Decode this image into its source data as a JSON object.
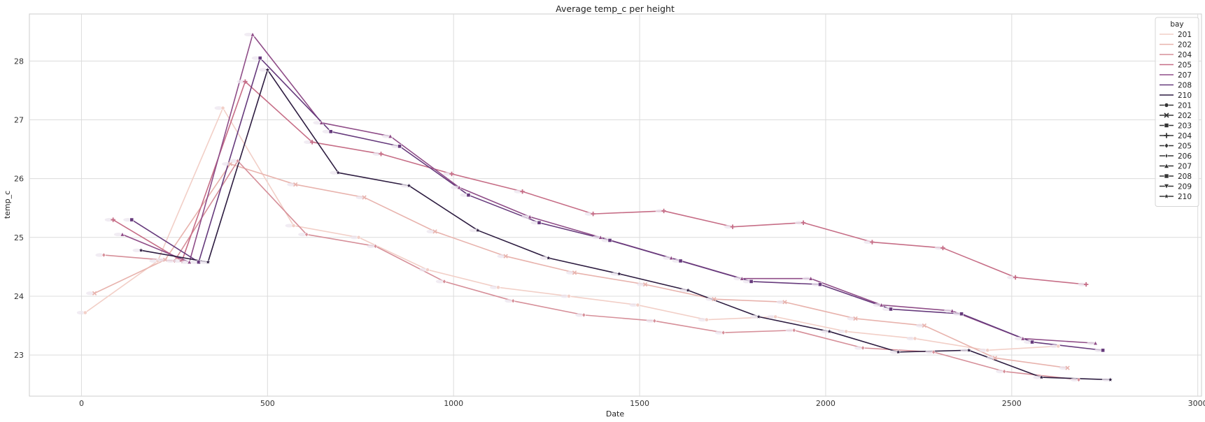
{
  "chart_data": {
    "type": "line",
    "title": "Average temp_c per height",
    "xlabel": "Date",
    "ylabel": "temp_c",
    "xlim": [
      -140,
      3010
    ],
    "ylim": [
      22.3,
      28.8
    ],
    "xticks": [
      0,
      500,
      1000,
      1500,
      2000,
      2500,
      3000
    ],
    "yticks": [
      23,
      24,
      25,
      26,
      27,
      28
    ],
    "grid": true,
    "legend": {
      "title": "bay",
      "placement": "top-right",
      "hue_entries": [
        "201",
        "202",
        "204",
        "205",
        "207",
        "208",
        "210"
      ],
      "style_entries": [
        "201",
        "202",
        "203",
        "204",
        "205",
        "206",
        "207",
        "208",
        "209",
        "210"
      ]
    },
    "series": [
      {
        "name": "201",
        "color": "#f2cfc7",
        "marker": "circle",
        "x": [
          10,
          205,
          380,
          570,
          745,
          930,
          1120,
          1310,
          1495,
          1680,
          1865,
          2055,
          2240,
          2435,
          2625
        ],
        "y": [
          23.72,
          24.6,
          27.2,
          25.2,
          25.0,
          24.45,
          24.15,
          24.0,
          23.85,
          23.6,
          23.65,
          23.4,
          23.28,
          23.08,
          23.15
        ]
      },
      {
        "name": "202",
        "color": "#e8b3ad",
        "marker": "x",
        "x": [
          35,
          225,
          400,
          575,
          760,
          950,
          1140,
          1325,
          1515,
          1700,
          1890,
          2080,
          2265,
          2455,
          2650
        ],
        "y": [
          24.05,
          24.62,
          26.25,
          25.9,
          25.68,
          25.1,
          24.68,
          24.4,
          24.2,
          23.95,
          23.9,
          23.62,
          23.5,
          22.95,
          22.78
        ]
      },
      {
        "name": "204",
        "color": "#d68f99",
        "marker": "diamond",
        "x": [
          60,
          250,
          420,
          605,
          790,
          975,
          1160,
          1350,
          1540,
          1725,
          1915,
          2100,
          2290,
          2480,
          2680
        ],
        "y": [
          24.7,
          24.6,
          26.3,
          25.05,
          24.85,
          24.25,
          23.92,
          23.68,
          23.58,
          23.38,
          23.42,
          23.12,
          23.05,
          22.72,
          22.58
        ]
      },
      {
        "name": "205",
        "color": "#c66d86",
        "marker": "plus",
        "x": [
          85,
          270,
          440,
          620,
          805,
          995,
          1185,
          1375,
          1565,
          1750,
          1940,
          2125,
          2315,
          2510,
          2700
        ],
        "y": [
          25.3,
          24.6,
          27.65,
          26.62,
          26.42,
          26.08,
          25.78,
          25.4,
          25.45,
          25.18,
          25.25,
          24.92,
          24.82,
          24.32,
          24.2
        ]
      },
      {
        "name": "207",
        "color": "#8f4d88",
        "marker": "triangle",
        "x": [
          110,
          290,
          460,
          645,
          830,
          1015,
          1205,
          1395,
          1585,
          1775,
          1960,
          2150,
          2340,
          2530,
          2725
        ],
        "y": [
          25.05,
          24.58,
          28.45,
          26.95,
          26.72,
          25.85,
          25.35,
          25.0,
          24.65,
          24.3,
          24.3,
          23.85,
          23.75,
          23.28,
          23.2
        ]
      },
      {
        "name": "208",
        "color": "#663a7c",
        "marker": "square",
        "x": [
          135,
          315,
          480,
          670,
          855,
          1040,
          1230,
          1420,
          1610,
          1800,
          1985,
          2175,
          2365,
          2555,
          2745
        ],
        "y": [
          25.3,
          24.58,
          28.05,
          26.8,
          26.55,
          25.72,
          25.25,
          24.95,
          24.6,
          24.25,
          24.2,
          23.78,
          23.7,
          23.22,
          23.08
        ]
      },
      {
        "name": "210",
        "color": "#2d1c40",
        "marker": "star",
        "x": [
          160,
          340,
          500,
          690,
          880,
          1065,
          1255,
          1445,
          1630,
          1820,
          2010,
          2195,
          2385,
          2580,
          2765
        ],
        "y": [
          24.78,
          24.58,
          27.85,
          26.1,
          25.88,
          25.12,
          24.65,
          24.38,
          24.1,
          23.65,
          23.4,
          23.05,
          23.08,
          22.62,
          22.58
        ]
      }
    ]
  }
}
